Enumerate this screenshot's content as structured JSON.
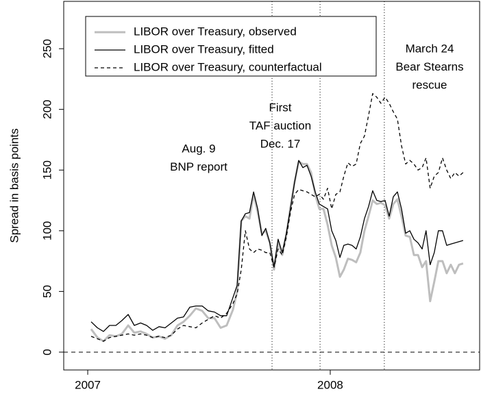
{
  "chart_data": {
    "type": "line",
    "ylabel": "Spread in basis points",
    "xlim": [
      2006.901,
      2008.616
    ],
    "ylim": [
      -14.7,
      289
    ],
    "xticks": [
      2007,
      2008
    ],
    "yticks": [
      0,
      50,
      100,
      150,
      200,
      250
    ],
    "hline": 0,
    "vlines": [
      2007.76,
      2007.958,
      2008.223
    ],
    "annotations": [
      [
        "Aug. 9",
        "BNP report"
      ],
      [
        "First",
        "TAF auction",
        "Dec. 17"
      ],
      [
        "March 24",
        "Bear Stearns",
        "rescue"
      ]
    ],
    "legend": "top-left",
    "x": [
      2007.014,
      2007.04,
      2007.065,
      2007.09,
      2007.116,
      2007.141,
      2007.167,
      2007.192,
      2007.218,
      2007.243,
      2007.268,
      2007.294,
      2007.319,
      2007.345,
      2007.37,
      2007.395,
      2007.421,
      2007.446,
      2007.472,
      2007.497,
      2007.523,
      2007.548,
      2007.573,
      2007.599,
      2007.616,
      2007.633,
      2007.65,
      2007.667,
      2007.684,
      2007.701,
      2007.718,
      2007.734,
      2007.751,
      2007.768,
      2007.785,
      2007.802,
      2007.819,
      2007.836,
      2007.853,
      2007.87,
      2007.887,
      2007.904,
      2007.921,
      2007.938,
      2007.955,
      2007.972,
      2007.989,
      2008.006,
      2008.023,
      2008.04,
      2008.056,
      2008.073,
      2008.09,
      2008.107,
      2008.124,
      2008.141,
      2008.158,
      2008.175,
      2008.192,
      2008.209,
      2008.226,
      2008.243,
      2008.26,
      2008.277,
      2008.294,
      2008.311,
      2008.328,
      2008.345,
      2008.362,
      2008.379,
      2008.395,
      2008.412,
      2008.429,
      2008.446,
      2008.463,
      2008.48,
      2008.497,
      2008.514,
      2008.531,
      2008.548
    ],
    "series": [
      {
        "name": "LIBOR over Treasury, observed",
        "color": "#bebebe",
        "dash": false,
        "width": 3,
        "values": [
          19,
          12,
          9,
          14,
          13,
          15,
          22,
          16,
          17,
          15,
          12,
          13,
          11,
          14,
          22,
          25,
          30,
          36,
          34,
          28,
          28,
          20,
          22,
          35,
          50,
          108,
          112,
          110,
          130,
          115,
          98,
          100,
          90,
          68,
          90,
          80,
          96,
          120,
          140,
          157,
          155,
          155,
          148,
          130,
          118,
          118,
          105,
          88,
          78,
          62,
          68,
          77,
          76,
          74,
          82,
          100,
          112,
          125,
          122,
          123,
          121,
          110,
          122,
          126,
          112,
          96,
          95,
          80,
          80,
          70,
          75,
          42,
          58,
          75,
          75,
          65,
          72,
          65,
          72,
          73
        ]
      },
      {
        "name": "LIBOR over Treasury, fitted",
        "color": "#000000",
        "dash": false,
        "width": 1.3,
        "values": [
          25,
          20,
          17,
          22,
          22,
          26,
          31,
          22,
          24,
          22,
          18,
          21,
          20,
          24,
          28,
          29,
          37,
          38,
          38,
          34,
          33,
          30,
          30,
          45,
          55,
          108,
          114,
          115,
          132,
          118,
          96,
          102,
          90,
          70,
          93,
          82,
          98,
          118,
          140,
          158,
          152,
          154,
          145,
          132,
          122,
          120,
          118,
          100,
          92,
          78,
          88,
          89,
          88,
          85,
          95,
          110,
          120,
          133,
          125,
          124,
          125,
          112,
          128,
          132,
          118,
          98,
          100,
          93,
          90,
          85,
          100,
          72,
          82,
          100,
          100,
          88,
          89,
          90,
          91,
          92
        ]
      },
      {
        "name": "LIBOR over Treasury, counterfactual",
        "color": "#000000",
        "dash": true,
        "width": 1.3,
        "values": [
          13,
          11,
          9,
          12,
          13,
          14,
          15,
          14,
          15,
          14,
          12,
          13,
          12,
          14,
          19,
          22,
          21,
          20,
          24,
          27,
          30,
          28,
          32,
          40,
          48,
          68,
          100,
          85,
          82,
          85,
          84,
          82,
          82,
          70,
          85,
          80,
          95,
          115,
          130,
          134,
          133,
          132,
          130,
          128,
          130,
          126,
          135,
          118,
          130,
          132,
          145,
          156,
          153,
          155,
          172,
          178,
          195,
          213,
          210,
          205,
          210,
          205,
          198,
          192,
          170,
          155,
          158,
          155,
          150,
          152,
          160,
          135,
          145,
          148,
          160,
          150,
          143,
          148,
          145,
          148
        ]
      }
    ]
  }
}
